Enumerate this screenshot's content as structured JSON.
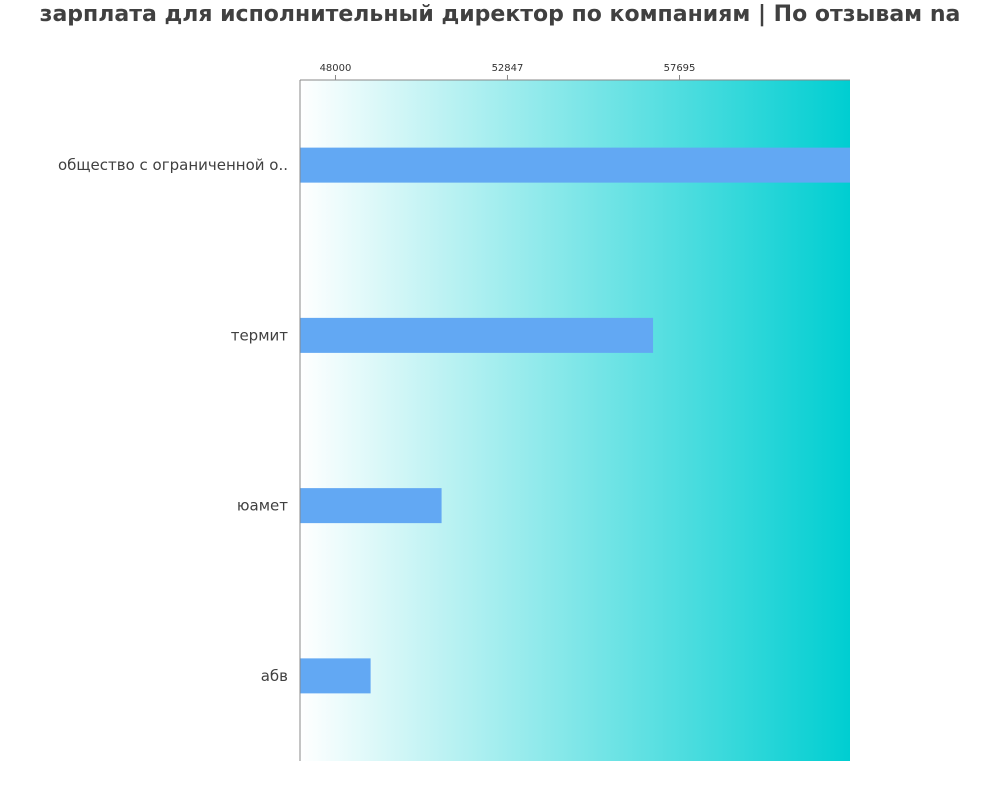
{
  "title": "зарплата для исполнительный директор по компаниям  | По отзывам na",
  "colors": {
    "bar": "#62a8f3",
    "gradient_start": "#ffffff",
    "gradient_end": "#00ced1",
    "axis": "#888888",
    "text": "#404040"
  },
  "chart_data": {
    "type": "bar",
    "orientation": "horizontal",
    "title": "зарплата для исполнительный директор по компаниям  | По отзывам na",
    "categories": [
      "общество с ограниченной о..",
      "термит",
      "юамет",
      "абв"
    ],
    "values": [
      63400,
      56950,
      50990,
      48990
    ],
    "xlim": [
      47000,
      62500
    ],
    "x_ticks": [
      48000,
      52847,
      57695
    ],
    "x_tick_labels": [
      "48000",
      "52847",
      "57695"
    ],
    "xlabel": "",
    "ylabel": "",
    "grid": false,
    "legend": "none"
  }
}
